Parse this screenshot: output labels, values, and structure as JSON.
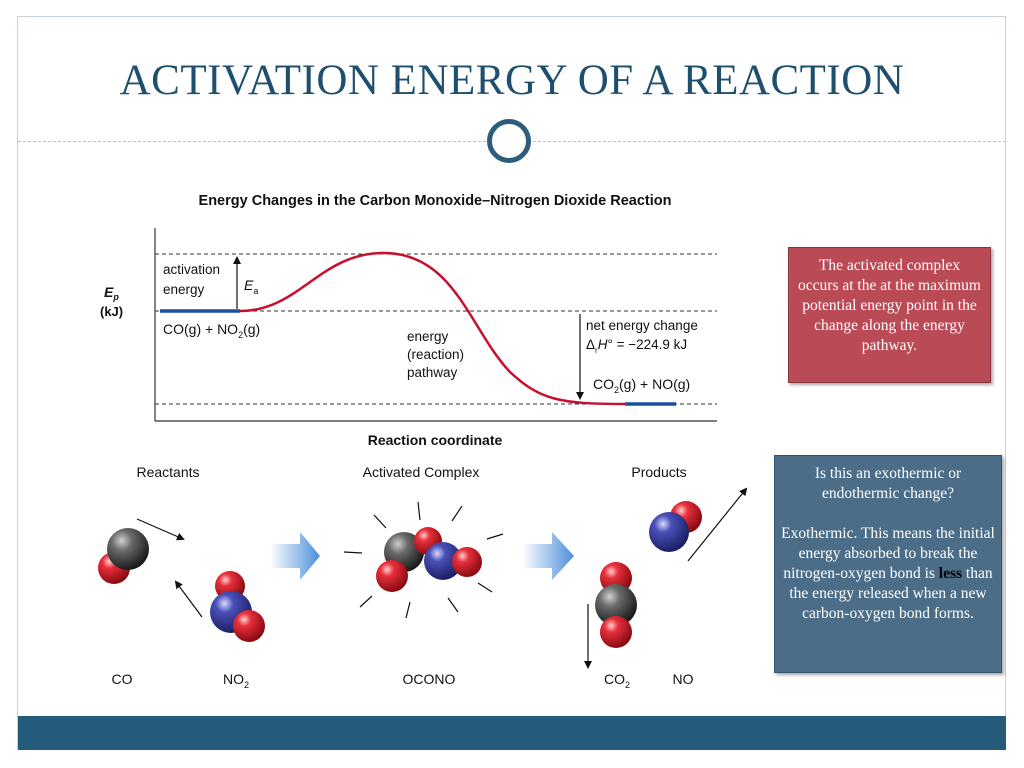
{
  "slide": {
    "title": "ACTIVATION ENERGY OF A REACTION"
  },
  "diagram": {
    "title": "Energy Changes in the Carbon Monoxide–Nitrogen Dioxide Reaction",
    "y_axis_label_main": "E",
    "y_axis_label_sub": "p",
    "y_axis_unit": "(kJ)",
    "x_axis_label": "Reaction coordinate",
    "activation_label_line1": "activation",
    "activation_label_line2": "energy",
    "ea_main": "E",
    "ea_sub": "a",
    "reactants_eq_part1": "CO(g) + NO",
    "reactants_eq_sub": "2",
    "reactants_eq_part2": "(g)",
    "pathway_line1": "energy",
    "pathway_line2": "(reaction)",
    "pathway_line3": "pathway",
    "net_change_line1": "net energy change",
    "net_change_delta": "Δ",
    "net_change_sub": "r",
    "net_change_h": "H",
    "net_change_value": "° = −224.9 kJ",
    "products_eq_part1": "CO",
    "products_eq_sub": "2",
    "products_eq_part2": "(g) + NO(g)",
    "stage_reactants": "Reactants",
    "stage_complex": "Activated Complex",
    "stage_products": "Products",
    "mol_co": "CO",
    "mol_no2_main": "NO",
    "mol_no2_sub": "2",
    "mol_ocono": "OCONO",
    "mol_co2_main": "CO",
    "mol_co2_sub": "2",
    "mol_no": "NO"
  },
  "red_box": {
    "text": "The activated complex occurs at the at the maximum potential energy point in the change along the energy pathway."
  },
  "blue_box": {
    "question": "Is this an exothermic or endothermic change?",
    "answer_part1": "Exothermic.  This means the initial energy absorbed to break the nitrogen-oxygen bond is ",
    "answer_bold": "less",
    "answer_part2": " than the energy released when a new carbon-oxygen bond forms."
  },
  "colors": {
    "title": "#1f4f6f",
    "curve": "#c8102e",
    "level_line": "#1e4f9c",
    "red_box": "#b94a56",
    "blue_box": "#4b6d88",
    "bottom_bar": "#245a7a",
    "carbon": "#3a3a3a",
    "oxygen": "#d91c2a",
    "nitrogen": "#3a3f9e"
  }
}
